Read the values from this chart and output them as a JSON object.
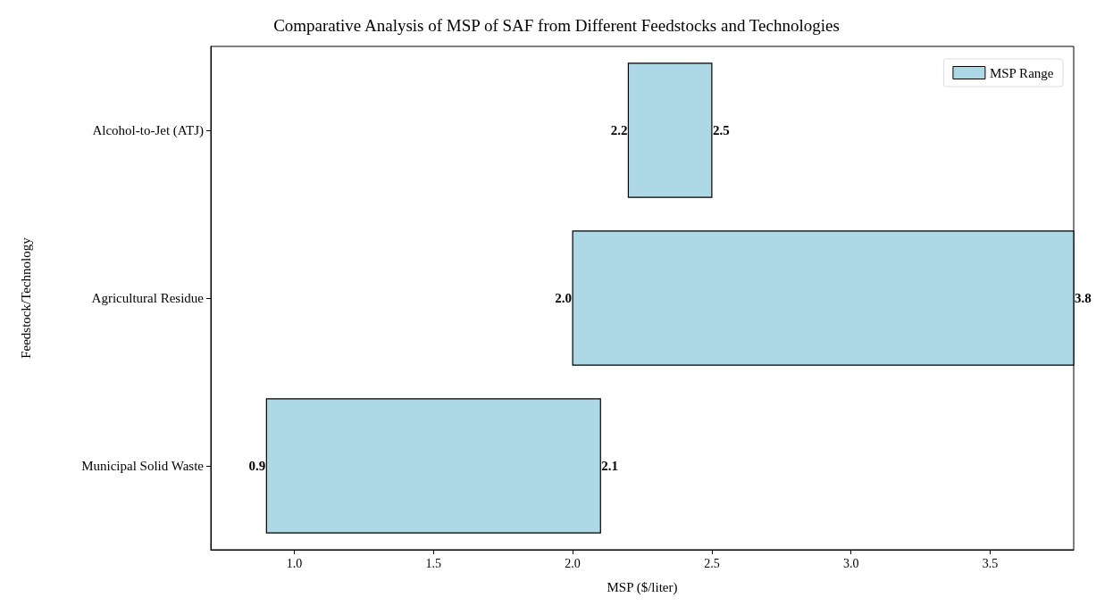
{
  "chart_data": {
    "type": "bar",
    "orientation": "horizontal",
    "title": "Comparative Analysis of MSP of SAF from Different Feedstocks and Technologies",
    "xlabel": "MSP ($/liter)",
    "ylabel": "Feedstock/Technology",
    "categories": [
      "Alcohol-to-Jet (ATJ)",
      "Agricultural Residue",
      "Municipal Solid Waste"
    ],
    "series": [
      {
        "name": "MSP Range",
        "color": "#add8e6",
        "base": [
          2.2,
          2.0,
          0.9
        ],
        "values": [
          0.3,
          1.8,
          1.2
        ]
      }
    ],
    "xlim": [
      0.7,
      3.8
    ],
    "xticks": [
      {
        "value": 1,
        "label": "1.0"
      },
      1.5,
      {
        "value": 2,
        "label": "2.0"
      },
      2.5,
      {
        "value": 3,
        "label": "3.0"
      },
      3.5
    ],
    "grid": false,
    "legend": "top right",
    "annotations": [
      {
        "text": "2.2",
        "x": 2.2,
        "y": "Alcohol-to-Jet (ATJ)"
      },
      {
        "text": "2.5",
        "x": 2.5,
        "y": "Alcohol-to-Jet (ATJ)"
      },
      {
        "text": "2.0",
        "x": 2.0,
        "y": "Agricultural Residue"
      },
      {
        "text": "3.8",
        "x": 3.8,
        "y": "Agricultural Residue"
      },
      {
        "text": "0.9",
        "x": 0.9,
        "y": "Municipal Solid Waste"
      },
      {
        "text": "2.1",
        "x": 2.1,
        "y": "Municipal Solid Waste"
      }
    ]
  }
}
